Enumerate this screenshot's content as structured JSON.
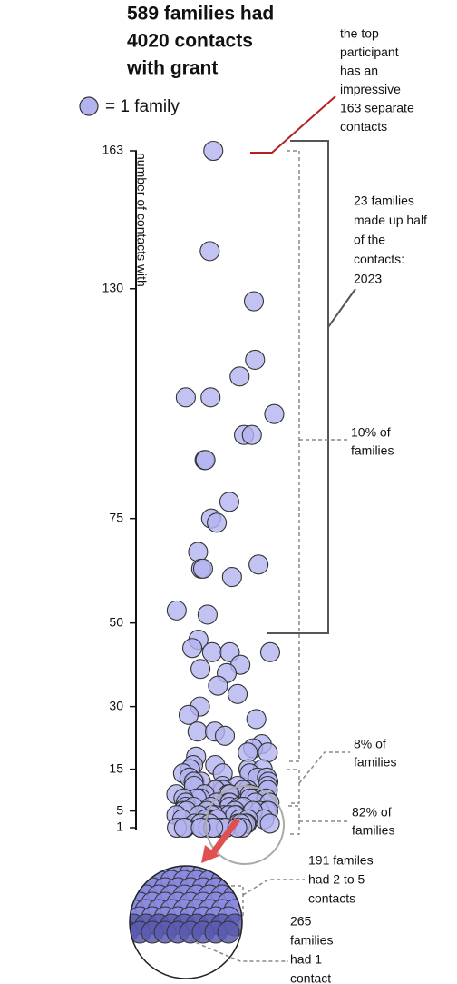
{
  "chart_data": {
    "type": "beeswarm",
    "title_lines": [
      "589 families had",
      "4020 contacts",
      "with grant"
    ],
    "legend_label": "= 1 family",
    "y_label": "number of contacts with",
    "color": "#b3b3f0",
    "ylim": [
      1,
      163
    ],
    "yticks": [
      1,
      5,
      15,
      30,
      50,
      75,
      130,
      163
    ],
    "values": [
      163,
      139,
      127,
      113,
      109,
      104,
      104,
      100,
      95,
      95,
      89,
      89,
      79,
      75,
      74,
      67,
      64,
      63,
      63,
      61,
      53,
      52,
      46,
      44,
      43,
      43,
      43,
      40,
      39,
      38,
      35,
      33,
      30,
      28,
      27,
      24,
      24,
      23,
      21,
      20,
      19,
      19,
      18,
      16,
      16,
      15,
      15,
      15,
      14,
      14,
      14,
      13,
      13,
      13,
      12,
      12,
      12,
      12,
      11,
      11,
      11,
      11,
      10,
      10,
      10,
      10,
      10,
      9,
      9,
      9,
      9,
      9,
      8,
      8,
      8,
      8,
      8,
      8,
      7,
      7,
      7,
      7,
      7,
      7,
      6,
      6,
      6,
      6,
      6,
      6,
      6,
      5,
      5,
      5,
      5,
      5,
      5,
      5,
      5,
      4,
      4,
      4,
      4,
      4,
      4,
      4,
      4,
      3,
      3,
      3,
      3,
      3,
      3,
      3,
      3,
      3,
      2,
      2,
      2,
      2,
      2,
      2,
      2,
      2,
      2,
      2,
      1,
      1,
      1,
      1,
      1,
      1,
      1,
      1,
      1,
      1,
      1,
      1,
      1,
      1
    ],
    "annotations": [
      {
        "lines": [
          "the top",
          "participant",
          "has an",
          "impressive",
          "163 separate",
          "contacts"
        ]
      },
      {
        "lines": [
          "23 families",
          "made up half",
          "of the",
          "contacts:",
          "2023"
        ]
      },
      {
        "lines": [
          "10% of",
          "families"
        ]
      },
      {
        "lines": [
          "8% of",
          "families"
        ]
      },
      {
        "lines": [
          "82% of",
          "families"
        ]
      },
      {
        "lines": [
          "191 familes",
          "had 2 to 5",
          "contacts"
        ]
      },
      {
        "lines": [
          "265",
          "families",
          "had 1",
          "contact"
        ]
      }
    ]
  }
}
